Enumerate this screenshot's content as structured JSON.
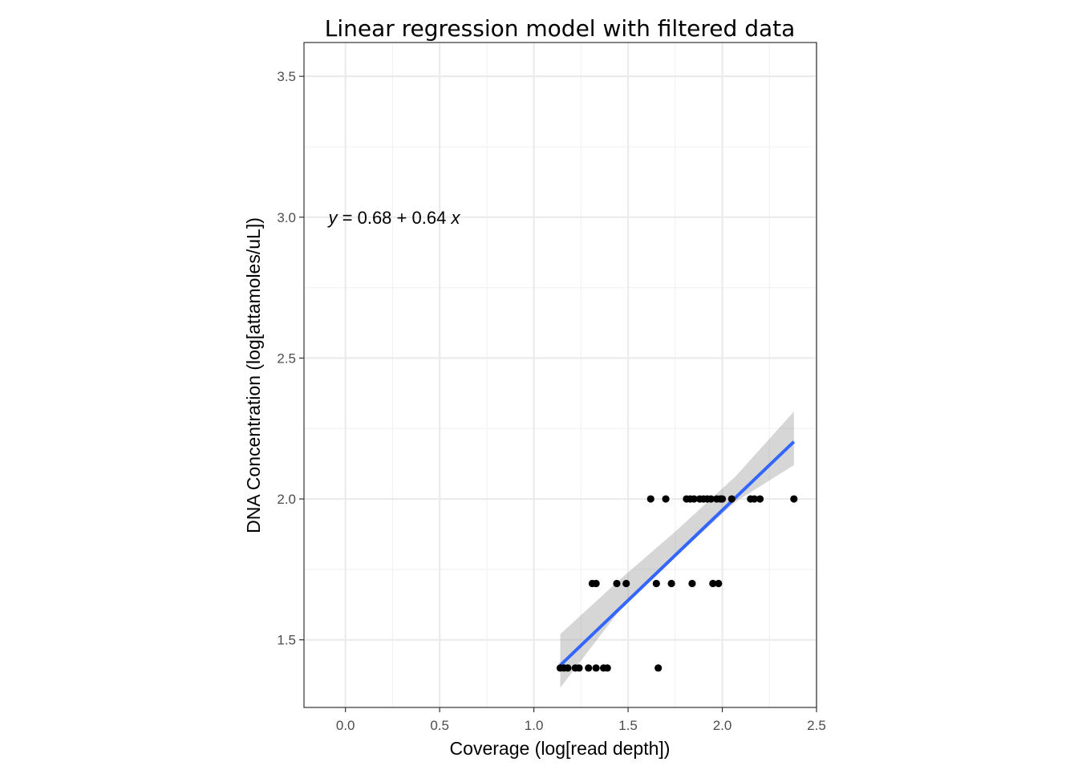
{
  "chart_data": {
    "type": "scatter",
    "title": "Linear regression model with filtered data",
    "xlabel": "Coverage (log[read depth])",
    "ylabel": "DNA Concentration (log[attamoles/uL])",
    "xlim": [
      -0.22,
      2.5
    ],
    "ylim": [
      1.26,
      3.62
    ],
    "x_ticks": [
      "0.0",
      "0.5",
      "1.0",
      "1.5",
      "2.0",
      "2.5"
    ],
    "y_ticks": [
      "1.5",
      "2.0",
      "2.5",
      "3.0",
      "3.5"
    ],
    "grid": true,
    "annotation": {
      "y_var": "y",
      "rest": " = 0.68 + 0.64 ",
      "x_var": "x",
      "at": [
        -0.09,
        3.0
      ]
    },
    "points": [
      {
        "x": 1.14,
        "y": 1.4
      },
      {
        "x": 1.16,
        "y": 1.4
      },
      {
        "x": 1.18,
        "y": 1.4
      },
      {
        "x": 1.22,
        "y": 1.4
      },
      {
        "x": 1.24,
        "y": 1.4
      },
      {
        "x": 1.29,
        "y": 1.4
      },
      {
        "x": 1.33,
        "y": 1.4
      },
      {
        "x": 1.37,
        "y": 1.4
      },
      {
        "x": 1.39,
        "y": 1.4
      },
      {
        "x": 1.66,
        "y": 1.4
      },
      {
        "x": 1.31,
        "y": 1.7
      },
      {
        "x": 1.33,
        "y": 1.7
      },
      {
        "x": 1.44,
        "y": 1.7
      },
      {
        "x": 1.49,
        "y": 1.7
      },
      {
        "x": 1.65,
        "y": 1.7
      },
      {
        "x": 1.73,
        "y": 1.7
      },
      {
        "x": 1.84,
        "y": 1.7
      },
      {
        "x": 1.95,
        "y": 1.7
      },
      {
        "x": 1.98,
        "y": 1.7
      },
      {
        "x": 1.62,
        "y": 2.0
      },
      {
        "x": 1.7,
        "y": 2.0
      },
      {
        "x": 1.81,
        "y": 2.0
      },
      {
        "x": 1.83,
        "y": 2.0
      },
      {
        "x": 1.85,
        "y": 2.0
      },
      {
        "x": 1.88,
        "y": 2.0
      },
      {
        "x": 1.9,
        "y": 2.0
      },
      {
        "x": 1.92,
        "y": 2.0
      },
      {
        "x": 1.94,
        "y": 2.0
      },
      {
        "x": 1.97,
        "y": 2.0
      },
      {
        "x": 1.99,
        "y": 2.0
      },
      {
        "x": 2.0,
        "y": 2.0
      },
      {
        "x": 2.05,
        "y": 2.0
      },
      {
        "x": 2.15,
        "y": 2.0
      },
      {
        "x": 2.17,
        "y": 2.0
      },
      {
        "x": 2.2,
        "y": 2.0
      },
      {
        "x": 2.38,
        "y": 2.0
      }
    ],
    "regression": {
      "intercept": 0.68,
      "slope": 0.64,
      "x_range": [
        1.14,
        2.38
      ],
      "line_color": "#3366FF",
      "band_color": "#999999",
      "band": [
        {
          "x": 1.14,
          "lower": 1.33,
          "upper": 1.52
        },
        {
          "x": 1.45,
          "lower": 1.6,
          "upper": 1.71
        },
        {
          "x": 1.76,
          "lower": 1.8,
          "upper": 1.89
        },
        {
          "x": 2.07,
          "lower": 1.99,
          "upper": 2.08
        },
        {
          "x": 2.38,
          "lower": 2.12,
          "upper": 2.31
        }
      ]
    },
    "point_color": "#000000"
  }
}
